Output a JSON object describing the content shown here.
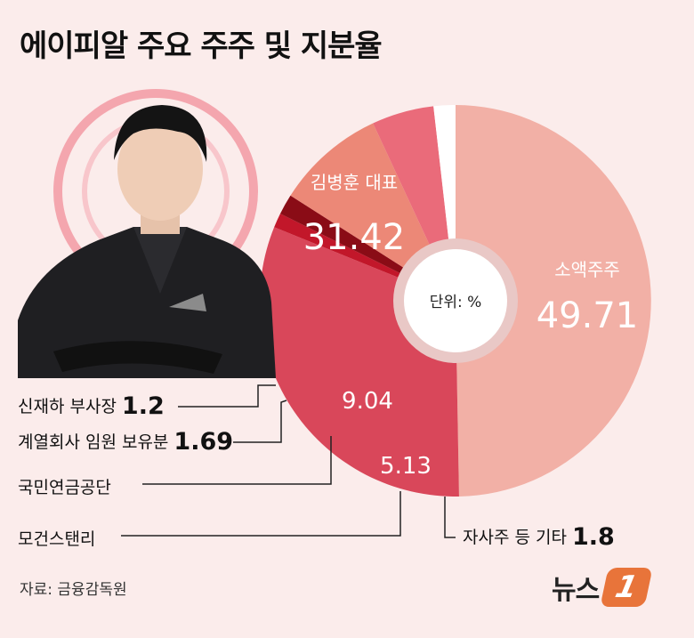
{
  "title": "에이피알 주요 주주 및 지분율",
  "source": "자료: 금융감독원",
  "logo_text": "뉴스",
  "logo_mark": "1",
  "center_label": "단위: %",
  "chart_data": {
    "type": "pie",
    "title": "에이피알 주요 주주 및 지분율",
    "unit": "%",
    "slices": [
      {
        "name": "소액주주",
        "value": 49.71,
        "color": "#f2b0a6"
      },
      {
        "name": "김병훈 대표",
        "value": 31.42,
        "color": "#d9475a"
      },
      {
        "name": "신재하 부사장",
        "value": 1.2,
        "color": "#c2172a"
      },
      {
        "name": "계열회사 임원 보유분",
        "value": 1.69,
        "color": "#8a0c16"
      },
      {
        "name": "국민연금공단",
        "value": 9.04,
        "color": "#ec8877"
      },
      {
        "name": "모건스탠리",
        "value": 5.13,
        "color": "#ea6b7a"
      },
      {
        "name": "자사주 등 기타",
        "value": 1.8,
        "color": "#ffffff"
      }
    ]
  },
  "slice_texts": {
    "minority_name": "소액주주",
    "minority_value": "49.71",
    "ceo_name": "김병훈 대표",
    "ceo_value": "31.42",
    "nps_value": "9.04",
    "ms_value": "5.13"
  },
  "callouts": {
    "shin_name": "신재하 부사장",
    "shin_value": "1.2",
    "affil_name": "계열회사 임원 보유분",
    "affil_value": "1.69",
    "nps_name": "국민연금공단",
    "ms_name": "모건스탠리",
    "treasury_name": "자사주 등 기타",
    "treasury_value": "1.8"
  }
}
